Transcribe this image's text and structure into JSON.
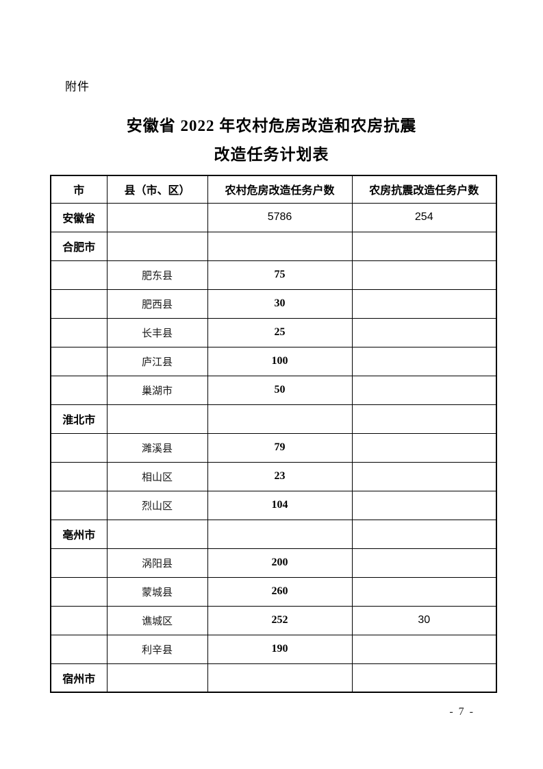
{
  "doc": {
    "attachment_label": "附件",
    "title_line1": "安徽省 2022 年农村危房改造和农房抗震",
    "title_line2": "改造任务计划表",
    "page_number": "- 7 -"
  },
  "table": {
    "headers": [
      "市",
      "县（市、区）",
      "农村危房改造任务户数",
      "农房抗震改造任务户数"
    ],
    "rows": [
      {
        "city": "安徽省",
        "county": "",
        "danger": "5786",
        "seismic": "254",
        "danger_font": "sans",
        "seismic_font": "sans"
      },
      {
        "city": "合肥市",
        "county": "",
        "danger": "",
        "seismic": "",
        "danger_font": "sans",
        "seismic_font": "sans"
      },
      {
        "city": "",
        "county": "肥东县",
        "danger": "75",
        "seismic": "",
        "danger_font": "serif-bold",
        "seismic_font": "serif-bold"
      },
      {
        "city": "",
        "county": "肥西县",
        "danger": "30",
        "seismic": "",
        "danger_font": "serif-bold",
        "seismic_font": "serif-bold"
      },
      {
        "city": "",
        "county": "长丰县",
        "danger": "25",
        "seismic": "",
        "danger_font": "serif-bold",
        "seismic_font": "serif-bold"
      },
      {
        "city": "",
        "county": "庐江县",
        "danger": "100",
        "seismic": "",
        "danger_font": "serif-bold",
        "seismic_font": "serif-bold"
      },
      {
        "city": "",
        "county": "巢湖市",
        "danger": "50",
        "seismic": "",
        "danger_font": "serif-bold",
        "seismic_font": "serif-bold"
      },
      {
        "city": "淮北市",
        "county": "",
        "danger": "",
        "seismic": "",
        "danger_font": "sans",
        "seismic_font": "sans"
      },
      {
        "city": "",
        "county": "濉溪县",
        "danger": "79",
        "seismic": "",
        "danger_font": "serif-bold",
        "seismic_font": "serif-bold"
      },
      {
        "city": "",
        "county": "相山区",
        "danger": "23",
        "seismic": "",
        "danger_font": "serif-bold",
        "seismic_font": "serif-bold"
      },
      {
        "city": "",
        "county": "烈山区",
        "danger": "104",
        "seismic": "",
        "danger_font": "serif-bold",
        "seismic_font": "serif-bold"
      },
      {
        "city": "亳州市",
        "county": "",
        "danger": "",
        "seismic": "",
        "danger_font": "sans",
        "seismic_font": "sans"
      },
      {
        "city": "",
        "county": "涡阳县",
        "danger": "200",
        "seismic": "",
        "danger_font": "serif-bold",
        "seismic_font": "serif-bold"
      },
      {
        "city": "",
        "county": "蒙城县",
        "danger": "260",
        "seismic": "",
        "danger_font": "serif-bold",
        "seismic_font": "serif-bold"
      },
      {
        "city": "",
        "county": "谯城区",
        "danger": "252",
        "seismic": "30",
        "danger_font": "serif-bold",
        "seismic_font": "sans"
      },
      {
        "city": "",
        "county": "利辛县",
        "danger": "190",
        "seismic": "",
        "danger_font": "serif-bold",
        "seismic_font": "serif-bold"
      },
      {
        "city": "宿州市",
        "county": "",
        "danger": "",
        "seismic": "",
        "danger_font": "sans",
        "seismic_font": "sans"
      }
    ]
  }
}
